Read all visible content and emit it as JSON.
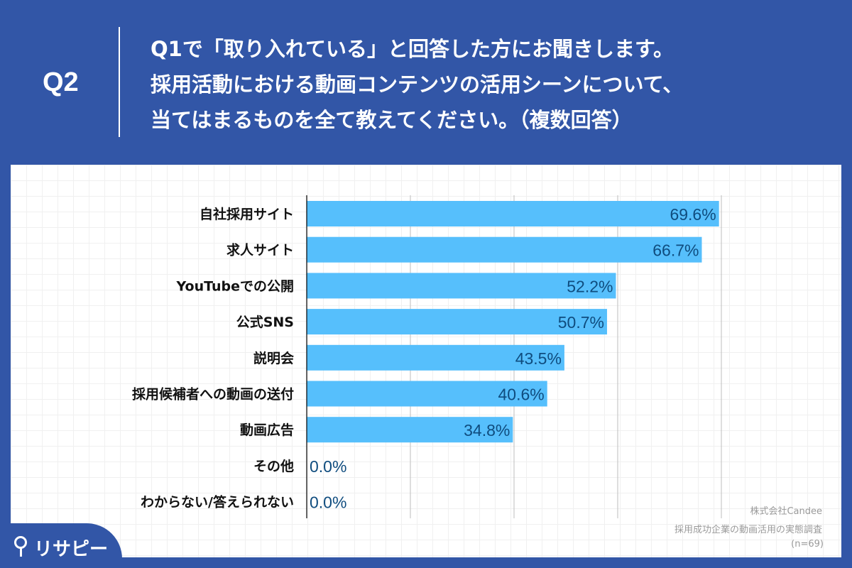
{
  "header": {
    "question_number": "Q2",
    "title_lines": [
      "Q1で「取り入れている」と回答した方にお聞きします。",
      "採用活動における動画コンテンツの活用シーンについて、",
      "当てはまるものを全て教えてください。（複数回答）"
    ]
  },
  "chart_data": {
    "type": "bar",
    "orientation": "horizontal",
    "categories": [
      "自社採用サイト",
      "求人サイト",
      "YouTubeでの公開",
      "公式SNS",
      "説明会",
      "採用候補者への動画の送付",
      "動画広告",
      "その他",
      "わからない/答えられない"
    ],
    "values": [
      69.6,
      66.7,
      52.2,
      50.7,
      43.5,
      40.6,
      34.8,
      0.0,
      0.0
    ],
    "data_labels": [
      "69.6%",
      "66.7%",
      "52.2%",
      "50.7%",
      "43.5%",
      "40.6%",
      "34.8%",
      "0.0%",
      "0.0%"
    ],
    "xlim": [
      0,
      70
    ],
    "gridlines": [
      17.5,
      35,
      52.5,
      70
    ],
    "grid": true,
    "bar_color": "#56bffc",
    "label_color": "#0f4c7e"
  },
  "credits": {
    "company": "株式会社Candee",
    "survey": "採用成功企業の動画活用の実態調査",
    "sample": "(n=69)"
  },
  "logo": {
    "text": "リサピー",
    "color": "#3256a7"
  }
}
